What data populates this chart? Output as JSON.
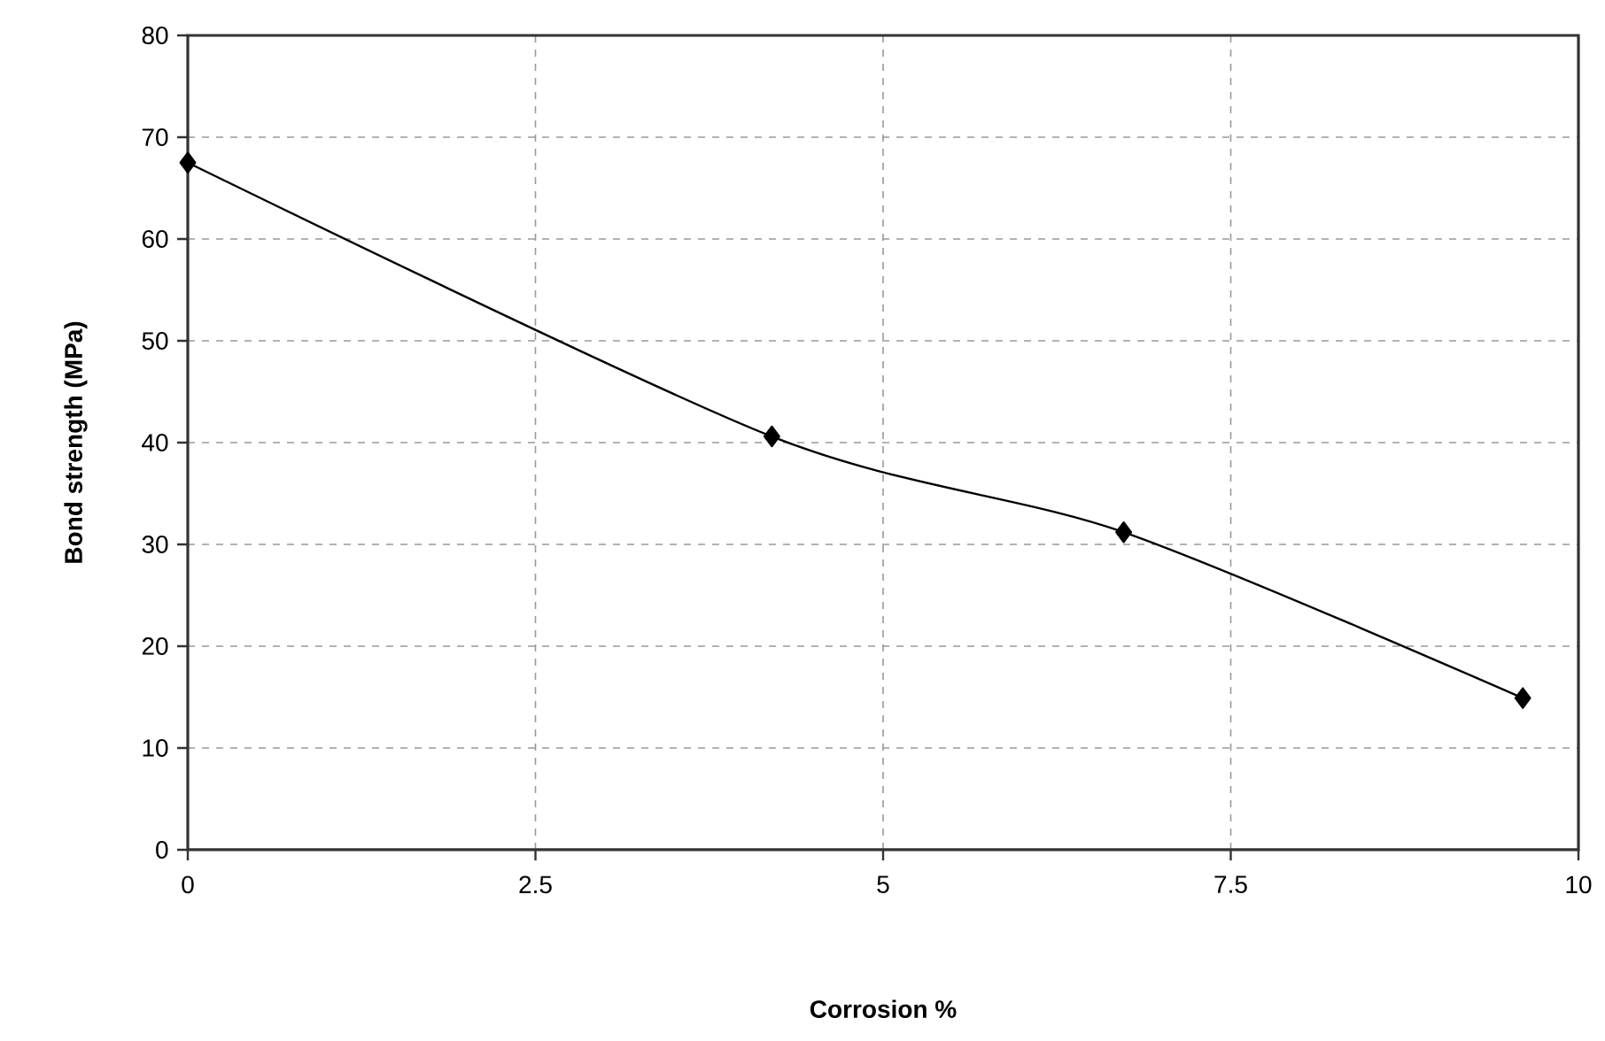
{
  "chart_data": {
    "type": "line",
    "xlabel": "Corrosion %",
    "ylabel": "Bond strength (MPa)",
    "x": [
      0,
      4.2,
      6.73,
      9.6
    ],
    "series": [
      {
        "color": "#000000",
        "values": [
          67.5,
          40.6,
          31.2,
          14.9
        ]
      }
    ],
    "xlim": [
      0,
      10
    ],
    "xticks": [
      0,
      2.5,
      5,
      7.5,
      10
    ],
    "ylim": [
      0,
      80
    ],
    "yticks": [
      0,
      10,
      20,
      30,
      40,
      50,
      60,
      70,
      80
    ],
    "grid": true,
    "marker": "diamond",
    "line_style": "solid"
  }
}
